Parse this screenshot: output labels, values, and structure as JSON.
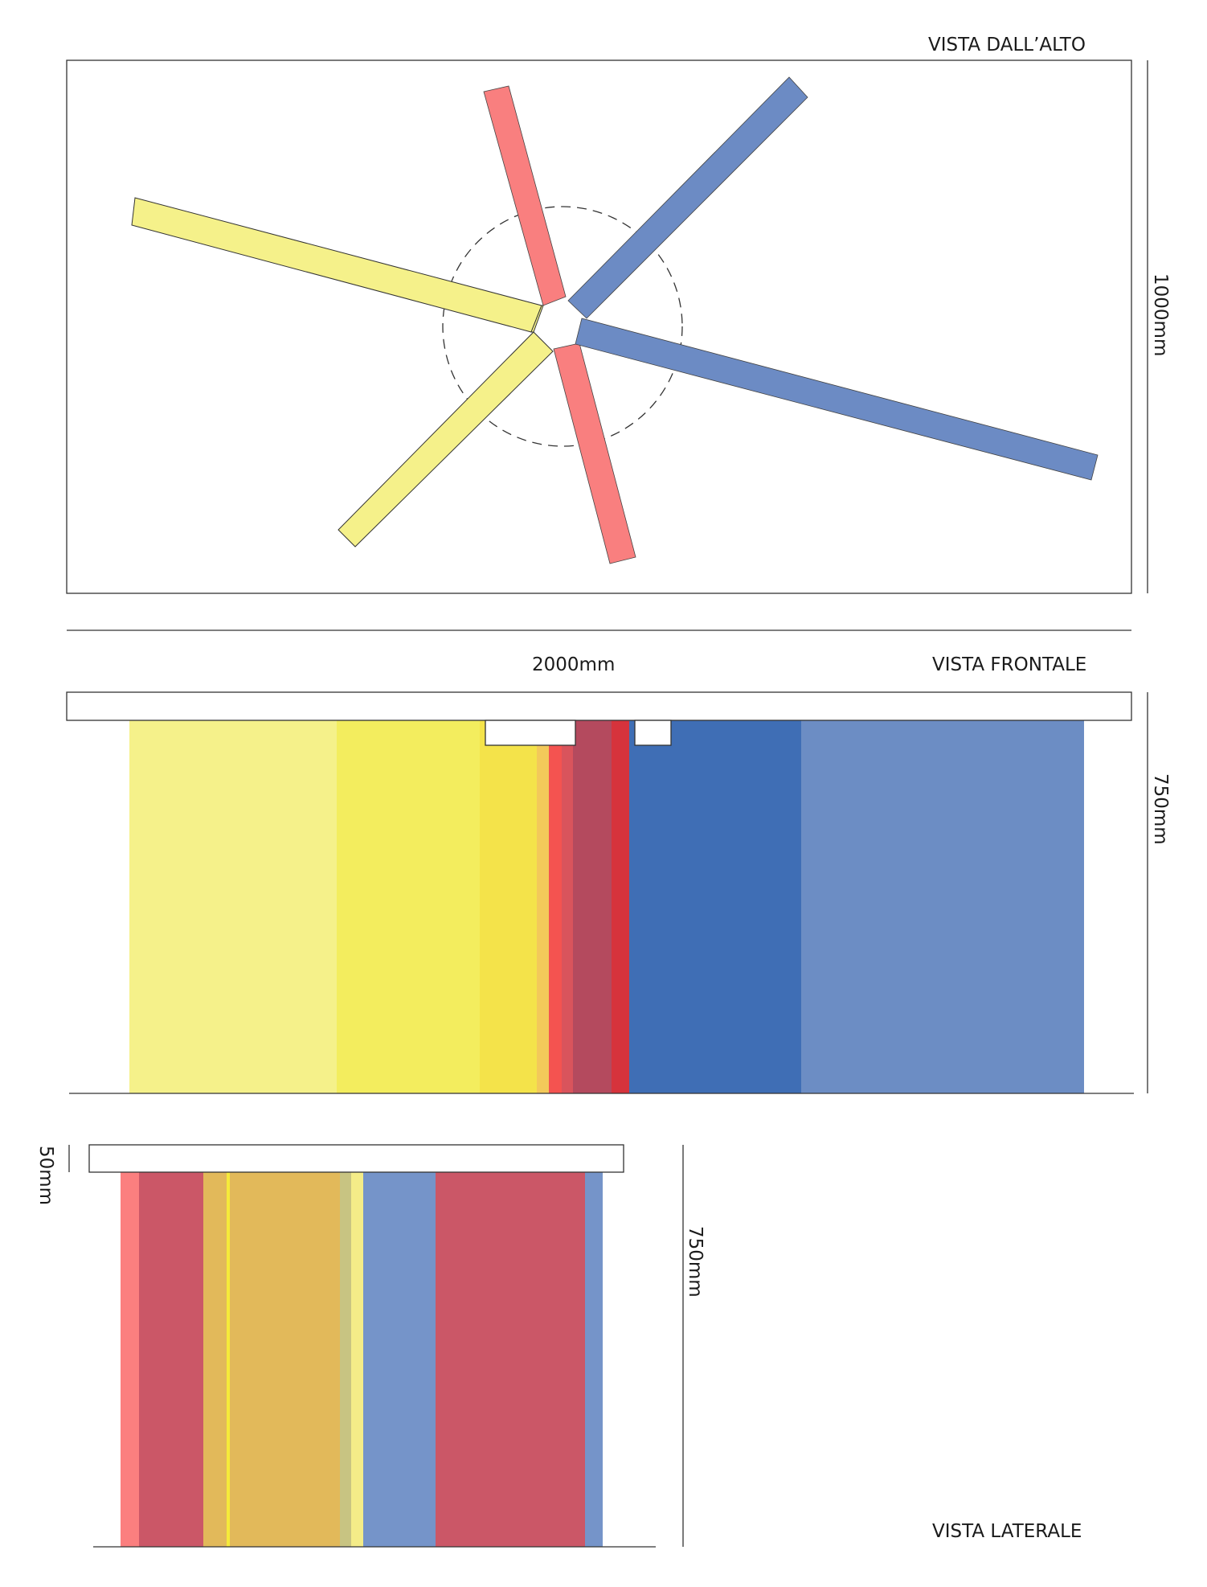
{
  "views": {
    "top": {
      "title": "VISTA DALL’ALTO",
      "depth_label": "1000mm"
    },
    "front": {
      "title": "VISTA FRONTALE",
      "width_label": "2000mm",
      "height_label": "750mm"
    },
    "side": {
      "title": "VISTA LATERALE",
      "top_thickness_label": "50mm",
      "height_label": "750mm"
    }
  },
  "colors": {
    "outline": "#333333",
    "yellow": "#f5f18a",
    "red": "#f97f7f",
    "blue": "#6c8bc4"
  },
  "legs": [
    {
      "name": "yellow-leg-left",
      "color": "yellow"
    },
    {
      "name": "yellow-leg-bottom-left",
      "color": "yellow"
    },
    {
      "name": "red-leg-top",
      "color": "red"
    },
    {
      "name": "red-leg-bottom",
      "color": "red"
    },
    {
      "name": "blue-leg-top-right",
      "color": "blue"
    },
    {
      "name": "blue-leg-right",
      "color": "blue"
    }
  ],
  "front_strips": [
    "#f5f18a",
    "#f3ed5e",
    "#f4e34a",
    "#f3c95a",
    "#f45350",
    "#d9545c",
    "#b44a5e",
    "#d6333c",
    "#3f6eb5",
    "#6c8dc4"
  ],
  "side_strips": [
    "#fb7f7f",
    "#cb5767",
    "#e2b95a",
    "#f6ea3a",
    "#e2b95a",
    "#c8c482",
    "#f4ec88",
    "#7594c9",
    "#cb5767",
    "#7594c9"
  ]
}
